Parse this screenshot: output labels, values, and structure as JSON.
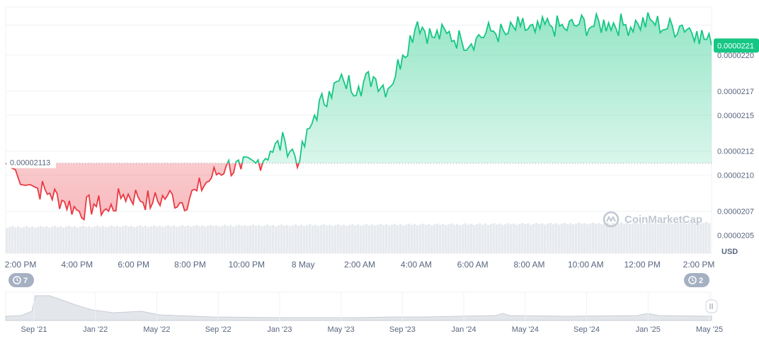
{
  "chart_data": {
    "type": "area",
    "title": "",
    "currency": "USD",
    "baseline": {
      "value": 2.11e-05,
      "label": "0.00002113"
    },
    "current": {
      "value": 2.208e-05,
      "label": "0.0000221"
    },
    "ylim": [
      2.035e-05,
      2.24e-05
    ],
    "y_ticks": [
      {
        "value": 2.2e-05,
        "label": "0.0000220"
      },
      {
        "value": 2.17e-05,
        "label": "0.0000217"
      },
      {
        "value": 2.15e-05,
        "label": "0.0000215"
      },
      {
        "value": 2.12e-05,
        "label": "0.0000212"
      },
      {
        "value": 2.1e-05,
        "label": "0.0000210"
      },
      {
        "value": 2.07e-05,
        "label": "0.0000207"
      },
      {
        "value": 2.05e-05,
        "label": "0.0000205"
      }
    ],
    "x_labels": [
      "2:00 PM",
      "4:00 PM",
      "6:00 PM",
      "8:00 PM",
      "10:00 PM",
      "8 May",
      "2:00 AM",
      "4:00 AM",
      "6:00 AM",
      "8:00 AM",
      "10:00 AM",
      "12:00 PM",
      "2:00 PM"
    ],
    "series": [
      {
        "x": [
          0,
          1,
          1.5,
          2,
          2.5,
          3,
          3.5,
          4,
          4.5,
          5,
          5.5,
          6,
          6.5,
          7,
          7.5,
          8,
          8.5,
          9,
          9.5,
          10,
          10.5,
          11,
          11.5,
          12,
          12.5,
          13,
          13.5,
          14,
          14.5,
          15,
          15.5,
          16,
          16.5,
          17,
          17.5,
          18,
          18.5,
          19,
          19.5,
          20,
          20.5,
          21,
          21.5,
          22,
          22.5,
          23,
          23.5,
          24
        ],
        "y": [
          2.11e-05,
          2.09e-05,
          2.085e-05,
          2.078e-05,
          2.07e-05,
          2.076e-05,
          2.07e-05,
          2.084e-05,
          2.082e-05,
          2.077e-05,
          2.083e-05,
          2.077e-05,
          2.087e-05,
          2.098e-05,
          2.108e-05,
          2.105e-05,
          2.11e-05,
          2.12e-05,
          2.128e-05,
          2.112e-05,
          2.15e-05,
          2.17e-05,
          2.178e-05,
          2.174e-05,
          2.182e-05,
          2.172e-05,
          2.2e-05,
          2.228e-05,
          2.215e-05,
          2.218e-05,
          2.212e-05,
          2.214e-05,
          2.22e-05,
          2.217e-05,
          2.224e-05,
          2.219e-05,
          2.225e-05,
          2.222e-05,
          2.226e-05,
          2.224e-05,
          2.227e-05,
          2.225e-05,
          2.226e-05,
          2.228e-05,
          2.222e-05,
          2.225e-05,
          2.22e-05,
          2.208e-05
        ]
      }
    ],
    "volume_note": "light grey volume bars along bottom",
    "navigator": {
      "labels": [
        "Sep '21",
        "Jan '22",
        "May '22",
        "Sep '22",
        "Jan '23",
        "May '23",
        "Sep '23",
        "Jan '24",
        "May '24",
        "Sep '24",
        "Jan '25",
        "May '25"
      ],
      "left_badge": "7",
      "right_badge": "2"
    },
    "colors": {
      "up": "#16c784",
      "down": "#ea3943",
      "grid": "#eff2f5",
      "text": "#58667e"
    },
    "watermark": "CoinMarketCap",
    "grid": true
  }
}
